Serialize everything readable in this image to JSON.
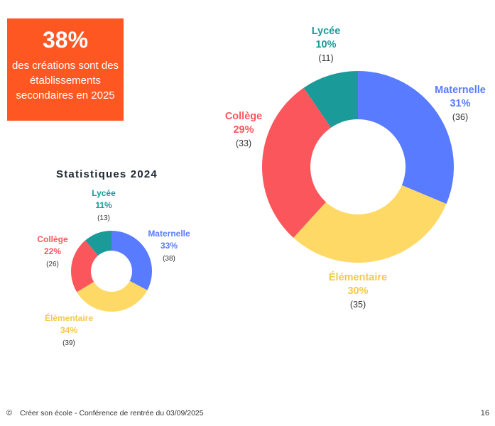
{
  "callout": {
    "percent": "38%",
    "text": "des créations sont des établissements secondaires en 2025"
  },
  "stats_title": "Statistiques 2024",
  "footer": {
    "icon": "copyright-icon",
    "text": "Créer son école - Conférence de rentrée du 03/09/2025",
    "page": "16"
  },
  "colors": {
    "Maternelle": "#587bff",
    "Élémentaire": "#ffd966",
    "Collège": "#fb565c",
    "Lycée": "#1a9a99",
    "callout": "#ff5722"
  },
  "chart_data": [
    {
      "type": "pie",
      "subtitle": "",
      "categories": [
        "Maternelle",
        "Élémentaire",
        "Collège",
        "Lycée"
      ],
      "values": [
        36,
        35,
        33,
        11
      ],
      "percent_labels": [
        "31%",
        "30%",
        "29%",
        "10%"
      ],
      "count_labels": [
        "(36)",
        "(35)",
        "(33)",
        "(11)"
      ],
      "donut": true
    },
    {
      "type": "pie",
      "title": "Statistiques 2024",
      "categories": [
        "Maternelle",
        "Élémentaire",
        "Collège",
        "Lycée"
      ],
      "values": [
        38,
        39,
        26,
        13
      ],
      "percent_labels": [
        "33%",
        "34%",
        "22%",
        "11%"
      ],
      "count_labels": [
        "(38)",
        "(39)",
        "(26)",
        "(13)"
      ],
      "donut": true
    }
  ]
}
